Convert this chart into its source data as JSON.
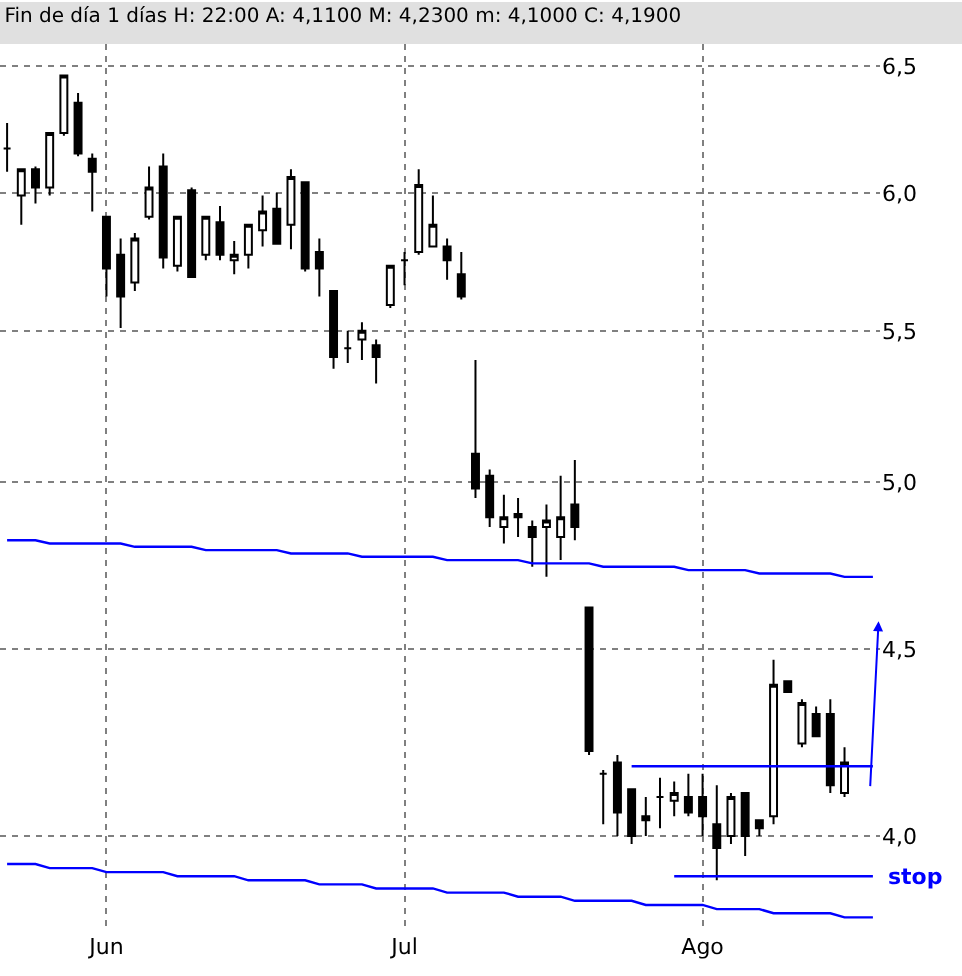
{
  "chart_data": {
    "type": "candlestick",
    "title": "Fin de día 1 días H: 22:00 A: 4,1100 M: 4,2300 m: 4,1000 C: 4,1900",
    "categories": [
      null,
      null,
      null,
      null,
      null,
      null,
      null,
      "Jun",
      null,
      null,
      null,
      null,
      null,
      null,
      null,
      null,
      null,
      null,
      null,
      null,
      null,
      null,
      null,
      null,
      null,
      null,
      null,
      null,
      "Jul",
      null,
      null,
      null,
      null,
      null,
      null,
      null,
      null,
      null,
      null,
      null,
      null,
      null,
      null,
      null,
      null,
      null,
      null,
      null,
      null,
      "Ago",
      null,
      null,
      null,
      null,
      null,
      null,
      null,
      null,
      null,
      null,
      null,
      null
    ],
    "ohlc": [
      [
        6.17,
        6.27,
        6.08,
        6.17
      ],
      [
        5.99,
        6.09,
        5.88,
        6.09
      ],
      [
        6.09,
        6.1,
        5.96,
        6.02
      ],
      [
        6.02,
        6.23,
        5.99,
        6.23
      ],
      [
        6.23,
        6.46,
        6.22,
        6.46
      ],
      [
        6.35,
        6.39,
        6.14,
        6.15
      ],
      [
        6.13,
        6.15,
        5.93,
        6.08
      ],
      [
        5.91,
        5.91,
        5.62,
        5.72
      ],
      [
        5.77,
        5.83,
        5.51,
        5.62
      ],
      [
        5.67,
        5.85,
        5.64,
        5.83
      ],
      [
        5.91,
        6.1,
        5.9,
        6.02
      ],
      [
        6.1,
        6.15,
        5.72,
        5.76
      ],
      [
        5.73,
        5.91,
        5.71,
        5.91
      ],
      [
        6.01,
        6.02,
        5.69,
        5.69
      ],
      [
        5.77,
        5.91,
        5.75,
        5.91
      ],
      [
        5.89,
        5.95,
        5.75,
        5.77
      ],
      [
        5.75,
        5.82,
        5.7,
        5.77
      ],
      [
        5.77,
        5.88,
        5.72,
        5.88
      ],
      [
        5.86,
        5.99,
        5.8,
        5.93
      ],
      [
        5.94,
        6.0,
        5.81,
        5.81
      ],
      [
        5.88,
        6.09,
        5.79,
        6.06
      ],
      [
        6.04,
        6.04,
        5.71,
        5.72
      ],
      [
        5.78,
        5.83,
        5.62,
        5.72
      ],
      [
        5.64,
        5.64,
        5.37,
        5.41
      ],
      [
        5.44,
        5.5,
        5.39,
        5.44
      ],
      [
        5.47,
        5.53,
        5.4,
        5.5
      ],
      [
        5.45,
        5.47,
        5.32,
        5.41
      ],
      [
        5.59,
        5.73,
        5.58,
        5.73
      ],
      [
        5.75,
        5.78,
        5.66,
        5.75
      ],
      [
        5.78,
        6.09,
        5.77,
        6.03
      ],
      [
        5.8,
        5.99,
        5.8,
        5.88
      ],
      [
        5.8,
        5.83,
        5.68,
        5.75
      ],
      [
        5.7,
        5.78,
        5.61,
        5.62
      ],
      [
        5.09,
        5.4,
        4.95,
        4.98
      ],
      [
        5.02,
        5.04,
        4.86,
        4.89
      ],
      [
        4.86,
        4.96,
        4.81,
        4.89
      ],
      [
        4.89,
        4.95,
        4.83,
        4.9
      ],
      [
        4.86,
        4.88,
        4.74,
        4.83
      ],
      [
        4.86,
        4.93,
        4.71,
        4.88
      ],
      [
        4.83,
        5.02,
        4.76,
        4.89
      ],
      [
        4.93,
        5.07,
        4.82,
        4.86
      ],
      [
        4.62,
        4.62,
        4.21,
        4.22
      ],
      [
        4.16,
        4.17,
        4.03,
        4.16
      ],
      [
        4.19,
        4.21,
        4.0,
        4.06
      ],
      [
        4.12,
        4.12,
        3.98,
        4.0
      ],
      [
        4.05,
        4.1,
        4.0,
        4.04
      ],
      [
        4.1,
        4.15,
        4.02,
        4.1
      ],
      [
        4.09,
        4.14,
        4.05,
        4.11
      ],
      [
        4.1,
        4.16,
        4.05,
        4.06
      ],
      [
        4.1,
        4.16,
        4.0,
        4.05
      ],
      [
        4.03,
        4.13,
        3.89,
        3.97
      ],
      [
        4.0,
        4.11,
        3.98,
        4.1
      ],
      [
        4.11,
        4.11,
        3.95,
        4.0
      ],
      [
        4.04,
        4.04,
        4.0,
        4.02
      ],
      [
        4.05,
        4.47,
        4.03,
        4.4
      ],
      [
        4.41,
        4.41,
        4.38,
        4.38
      ],
      [
        4.24,
        4.36,
        4.23,
        4.35
      ],
      [
        4.32,
        4.34,
        4.26,
        4.26
      ],
      [
        4.32,
        4.36,
        4.11,
        4.13
      ],
      [
        4.11,
        4.23,
        4.1,
        4.19
      ],
      null,
      null
    ],
    "series": [
      {
        "type": "line",
        "color": "#0000ff",
        "values": [
          4.82,
          4.82,
          4.82,
          4.81,
          4.81,
          4.81,
          4.81,
          4.81,
          4.81,
          4.8,
          4.8,
          4.8,
          4.8,
          4.8,
          4.79,
          4.79,
          4.79,
          4.79,
          4.79,
          4.79,
          4.78,
          4.78,
          4.78,
          4.78,
          4.78,
          4.77,
          4.77,
          4.77,
          4.77,
          4.77,
          4.77,
          4.76,
          4.76,
          4.76,
          4.76,
          4.76,
          4.76,
          4.75,
          4.75,
          4.75,
          4.75,
          4.75,
          4.74,
          4.74,
          4.74,
          4.74,
          4.74,
          4.74,
          4.73,
          4.73,
          4.73,
          4.73,
          4.73,
          4.72,
          4.72,
          4.72,
          4.72,
          4.72,
          4.72,
          4.71,
          4.71,
          4.71
        ]
      },
      {
        "type": "line",
        "color": "#0000ff",
        "values": [
          3.93,
          3.93,
          3.93,
          3.92,
          3.92,
          3.92,
          3.92,
          3.91,
          3.91,
          3.91,
          3.91,
          3.91,
          3.9,
          3.9,
          3.9,
          3.9,
          3.9,
          3.89,
          3.89,
          3.89,
          3.89,
          3.89,
          3.88,
          3.88,
          3.88,
          3.88,
          3.87,
          3.87,
          3.87,
          3.87,
          3.87,
          3.86,
          3.86,
          3.86,
          3.86,
          3.86,
          3.85,
          3.85,
          3.85,
          3.85,
          3.84,
          3.84,
          3.84,
          3.84,
          3.84,
          3.83,
          3.83,
          3.83,
          3.83,
          3.83,
          3.82,
          3.82,
          3.82,
          3.82,
          3.81,
          3.81,
          3.81,
          3.81,
          3.81,
          3.8,
          3.8,
          3.8
        ]
      },
      {
        "type": "line",
        "color": "#0000ff",
        "values": [
          null,
          null,
          null,
          null,
          null,
          null,
          null,
          null,
          null,
          null,
          null,
          null,
          null,
          null,
          null,
          null,
          null,
          null,
          null,
          null,
          null,
          null,
          null,
          null,
          null,
          null,
          null,
          null,
          null,
          null,
          null,
          null,
          null,
          null,
          null,
          null,
          null,
          null,
          null,
          null,
          null,
          null,
          null,
          null,
          4.18,
          4.18,
          4.18,
          4.18,
          4.18,
          4.18,
          4.18,
          4.18,
          4.18,
          4.18,
          4.18,
          4.18,
          4.18,
          4.18,
          4.18,
          4.18,
          4.18,
          4.18
        ]
      },
      {
        "type": "line",
        "color": "#0000ff",
        "values": [
          null,
          null,
          null,
          null,
          null,
          null,
          null,
          null,
          null,
          null,
          null,
          null,
          null,
          null,
          null,
          null,
          null,
          null,
          null,
          null,
          null,
          null,
          null,
          null,
          null,
          null,
          null,
          null,
          null,
          null,
          null,
          null,
          null,
          null,
          null,
          null,
          null,
          null,
          null,
          null,
          null,
          null,
          null,
          null,
          null,
          null,
          null,
          3.9,
          3.9,
          3.9,
          3.9,
          3.9,
          3.9,
          3.9,
          3.9,
          3.9,
          3.9,
          3.9,
          3.9,
          3.9,
          3.9,
          3.9
        ]
      }
    ],
    "annotations": [
      "stop"
    ],
    "log": true,
    "grid": true,
    "ylim": [
      3.77,
      6.59
    ],
    "yticks": [
      {
        "value": 4,
        "label": "4,0"
      },
      {
        "value": 4.5,
        "label": "4,5"
      },
      {
        "value": 5,
        "label": "5,0"
      },
      {
        "value": 5.5,
        "label": "5,5"
      },
      {
        "value": 6,
        "label": "6,0"
      },
      {
        "value": 6.5,
        "label": "6,5"
      }
    ]
  }
}
